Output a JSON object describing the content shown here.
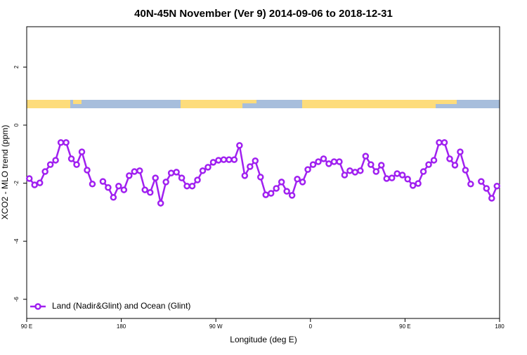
{
  "chart_data": {
    "type": "line",
    "title": "40N-45N November (Ver 9)   2014-09-06 to 2018-12-31",
    "x_label": "Longitude (deg E)",
    "y_label": "XCO2 - MLO trend (ppm)",
    "xlim": [
      90,
      540
    ],
    "xticks": [
      {
        "value": 90,
        "label": "90 E"
      },
      {
        "value": 180,
        "label": "180"
      },
      {
        "value": 270,
        "label": "90 W"
      },
      {
        "value": 360,
        "label": "0"
      },
      {
        "value": 450,
        "label": "90 E"
      },
      {
        "value": 540,
        "label": "180"
      }
    ],
    "ylim": [
      -6.66,
      3.39
    ],
    "yticks": [
      -6,
      -4,
      -2,
      0,
      2
    ],
    "legend": "bottom-left",
    "x": [
      92.5,
      97.5,
      102.5,
      107.5,
      112.5,
      117.5,
      122.5,
      127.5,
      132.5,
      137.5,
      142.5,
      147.5,
      152.5,
      157.5,
      162.5,
      167.5,
      172.5,
      177.5,
      182.5,
      187.5,
      192.5,
      197.5,
      202.5,
      207.5,
      212.5,
      217.5,
      222.5,
      227.5,
      232.5,
      237.5,
      242.5,
      247.5,
      252.5,
      257.5,
      262.5,
      267.5,
      272.5,
      277.5,
      282.5,
      287.5,
      292.5,
      297.5,
      302.5,
      307.5,
      312.5,
      317.5,
      322.5,
      327.5,
      332.5,
      337.5,
      342.5,
      347.5,
      352.5,
      357.5,
      362.5,
      367.5,
      372.5,
      377.5,
      382.5,
      387.5,
      392.5,
      397.5,
      402.5,
      407.5,
      412.5,
      417.5,
      422.5,
      427.5,
      432.5,
      437.5,
      442.5,
      447.5,
      452.5,
      457.5,
      462.5,
      467.5,
      472.5,
      477.5,
      482.5,
      487.5,
      492.5,
      497.5,
      502.5,
      507.5,
      512.5,
      517.5,
      522.5,
      527.5,
      532.5,
      537.5
    ],
    "series": [
      {
        "name": "Land (Nadir&Glint) and Ocean (Glint)",
        "color": "#a020f0",
        "values": [
          -1.84,
          -2.06,
          -1.99,
          -1.6,
          -1.36,
          -1.21,
          -0.6,
          -0.6,
          -1.16,
          -1.36,
          -0.92,
          -1.55,
          -2.03,
          null,
          -1.94,
          -2.15,
          -2.49,
          -2.1,
          -2.23,
          -1.74,
          -1.6,
          -1.57,
          -2.23,
          -2.32,
          -1.82,
          -2.69,
          -1.96,
          -1.65,
          -1.62,
          -1.82,
          -2.1,
          -2.1,
          -1.89,
          -1.57,
          -1.45,
          -1.28,
          -1.21,
          -1.19,
          -1.19,
          -1.19,
          -0.7,
          -1.74,
          -1.43,
          -1.23,
          -1.79,
          -2.4,
          -2.35,
          -2.18,
          -1.96,
          -2.28,
          -2.42,
          -1.86,
          -1.96,
          -1.53,
          -1.36,
          -1.26,
          -1.16,
          -1.33,
          -1.26,
          -1.26,
          -1.72,
          -1.57,
          -1.62,
          -1.57,
          -1.07,
          -1.36,
          -1.6,
          -1.38,
          -1.84,
          -1.82,
          -1.67,
          -1.72,
          -1.86,
          -2.08,
          -2.01,
          -1.6,
          -1.36,
          -1.21,
          -0.6,
          -0.6,
          -1.16,
          -1.38,
          -0.92,
          -1.55,
          -2.03,
          null,
          -1.94,
          -2.18,
          -2.52,
          -2.1
        ]
      }
    ]
  }
}
